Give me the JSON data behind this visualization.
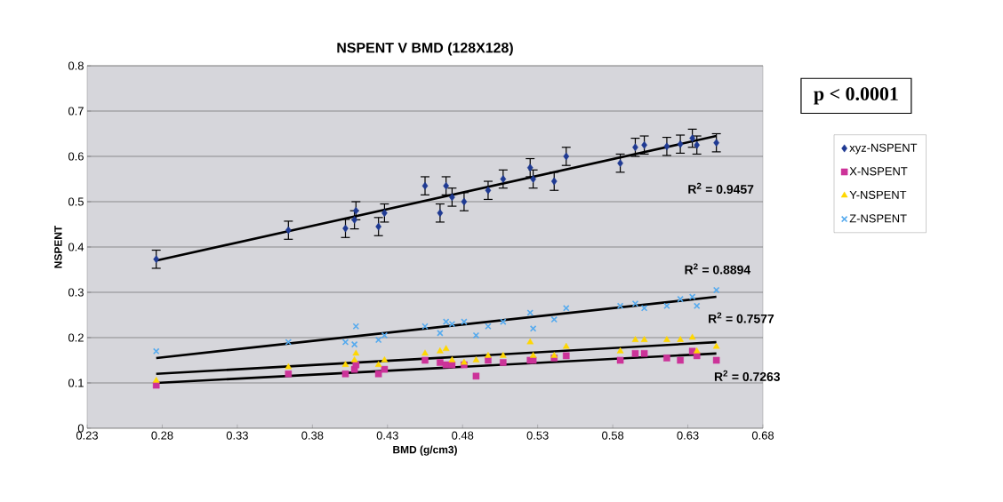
{
  "chart_data": {
    "type": "scatter",
    "title": "NSPENT V BMD (128X128)",
    "xlabel": "BMD (g/cm3)",
    "ylabel": "NSPENT",
    "x": [
      0.276,
      0.364,
      0.402,
      0.408,
      0.409,
      0.424,
      0.428,
      0.455,
      0.465,
      0.469,
      0.473,
      0.481,
      0.489,
      0.497,
      0.507,
      0.525,
      0.527,
      0.541,
      0.549,
      0.585,
      0.595,
      0.601,
      0.616,
      0.625,
      0.633,
      0.636,
      0.649
    ],
    "series": [
      {
        "name": "xyz-NSPENT",
        "color": "#1f3a93",
        "marker": "diamond",
        "values": [
          0.373,
          0.437,
          0.441,
          0.46,
          0.48,
          0.445,
          0.475,
          0.535,
          0.475,
          0.535,
          0.51,
          0.5,
          null,
          0.525,
          0.55,
          0.575,
          0.55,
          0.545,
          0.6,
          0.585,
          0.62,
          0.625,
          0.622,
          0.627,
          0.64,
          0.625,
          0.63
        ],
        "errors": [
          0.02,
          0.02,
          0.02,
          0.02,
          0.02,
          0.02,
          0.02,
          0.02,
          0.02,
          0.02,
          0.02,
          0.02,
          null,
          0.02,
          0.02,
          0.02,
          0.02,
          0.02,
          0.02,
          0.02,
          0.02,
          0.02,
          0.02,
          0.02,
          0.02,
          0.02,
          0.02
        ]
      },
      {
        "name": "X-NSPENT",
        "color": "#cc3399",
        "marker": "square",
        "values": [
          0.095,
          0.12,
          0.12,
          0.13,
          0.14,
          0.12,
          0.13,
          0.15,
          0.145,
          0.14,
          0.14,
          0.14,
          0.115,
          0.15,
          0.145,
          0.15,
          0.15,
          0.155,
          0.16,
          0.15,
          0.165,
          0.165,
          0.155,
          0.15,
          0.17,
          0.16,
          0.15
        ]
      },
      {
        "name": "Y-NSPENT",
        "color": "#ffd700",
        "marker": "triangle",
        "values": [
          0.105,
          0.135,
          0.14,
          0.15,
          0.165,
          0.14,
          0.15,
          0.165,
          0.17,
          0.175,
          0.15,
          0.145,
          0.15,
          0.16,
          0.16,
          0.19,
          0.16,
          0.16,
          0.18,
          0.17,
          0.195,
          0.195,
          0.195,
          0.195,
          0.2,
          0.17,
          0.18
        ]
      },
      {
        "name": "Z-NSPENT",
        "color": "#55aaee",
        "marker": "cross",
        "values": [
          0.17,
          0.19,
          0.19,
          0.185,
          0.225,
          0.195,
          0.205,
          0.225,
          0.21,
          0.235,
          0.23,
          0.235,
          0.205,
          0.225,
          0.235,
          0.255,
          0.22,
          0.24,
          0.265,
          0.27,
          0.275,
          0.265,
          0.27,
          0.285,
          0.29,
          0.27,
          0.305
        ]
      },
      {
        "type": "line",
        "color": "#000000",
        "marker": "none",
        "values": [
          0.37,
          null,
          null,
          null,
          null,
          null,
          null,
          null,
          null,
          null,
          null,
          null,
          null,
          null,
          null,
          null,
          null,
          null,
          null,
          null,
          null,
          null,
          null,
          null,
          null,
          null,
          0.645
        ]
      },
      {
        "type": "line",
        "color": "#000000",
        "marker": "none",
        "values": [
          0.155,
          null,
          null,
          null,
          null,
          null,
          null,
          null,
          null,
          null,
          null,
          null,
          null,
          null,
          null,
          null,
          null,
          null,
          null,
          null,
          null,
          null,
          null,
          null,
          null,
          null,
          0.29
        ]
      },
      {
        "type": "line",
        "color": "#000000",
        "marker": "none",
        "values": [
          0.12,
          null,
          null,
          null,
          null,
          null,
          null,
          null,
          null,
          null,
          null,
          null,
          null,
          null,
          null,
          null,
          null,
          null,
          null,
          null,
          null,
          null,
          null,
          null,
          null,
          null,
          0.19
        ]
      },
      {
        "type": "line",
        "color": "#000000",
        "marker": "none",
        "values": [
          0.1,
          null,
          null,
          null,
          null,
          null,
          null,
          null,
          null,
          null,
          null,
          null,
          null,
          null,
          null,
          null,
          null,
          null,
          null,
          null,
          null,
          null,
          null,
          null,
          null,
          null,
          0.165
        ]
      }
    ],
    "annotations": [
      "R$^{2}$ = 0.9457",
      "R$^{2}$ = 0.8894",
      "R$^{2}$ = 0.7577",
      "R$^{2}$ = 0.7263",
      "p < 0.0001"
    ],
    "xlim": [
      0.23,
      0.68
    ],
    "ylim": [
      0,
      0.8
    ],
    "xticks": [
      0.23,
      0.28,
      0.33,
      0.38,
      0.43,
      0.48,
      0.53,
      0.58,
      0.63,
      0.68
    ],
    "yticks": [
      0,
      0.1,
      0.2,
      0.3,
      0.4,
      0.5,
      0.6,
      0.7,
      0.8
    ],
    "grid": "y",
    "legend": "right"
  }
}
